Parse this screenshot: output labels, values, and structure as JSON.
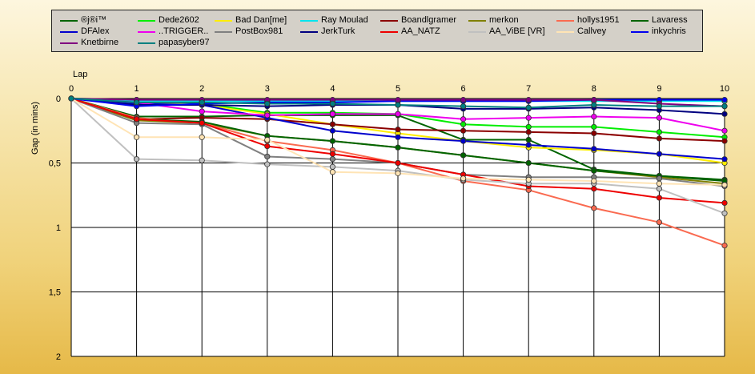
{
  "chart_data": {
    "type": "line",
    "xlabel": "Lap",
    "ylabel": "Gap (in mins)",
    "x": [
      0,
      1,
      2,
      3,
      4,
      5,
      6,
      7,
      8,
      9,
      10
    ],
    "x_ticks": [
      "0",
      "1",
      "2",
      "3",
      "4",
      "5",
      "6",
      "7",
      "8",
      "9",
      "10"
    ],
    "xlim": [
      0,
      10
    ],
    "ylim": [
      0,
      2
    ],
    "y_inverted": true,
    "y_ticks": [
      0,
      0.5,
      1,
      1.5,
      2
    ],
    "y_tick_labels": [
      "0",
      "0,5",
      "1",
      "1,5",
      "2"
    ],
    "grid": true,
    "legend_position": "top",
    "plot_background": "#ffffff",
    "series": [
      {
        "name": "®j®i™",
        "color": "#006400",
        "values": [
          0,
          0.14,
          0.14,
          0.13,
          0.13,
          0.13,
          0.32,
          0.32,
          0.55,
          0.6,
          0.63
        ]
      },
      {
        "name": "Dede2602",
        "color": "#00ee00",
        "values": [
          0,
          0.01,
          0.04,
          0.11,
          0.11,
          0.12,
          0.2,
          0.22,
          0.22,
          0.26,
          0.3
        ]
      },
      {
        "name": "Bad Dan[me]",
        "color": "#ffee00",
        "values": [
          0,
          0.03,
          0.05,
          0.12,
          0.2,
          0.27,
          0.33,
          0.38,
          0.4,
          0.43,
          0.5
        ]
      },
      {
        "name": "Ray Moulad",
        "color": "#00e5ee",
        "values": [
          0,
          0.02,
          0.02,
          0.02,
          0.02,
          0.02,
          0.02,
          0.02,
          0.02,
          0.02,
          0.02
        ]
      },
      {
        "name": "Boandlgramer",
        "color": "#8b0000",
        "values": [
          0,
          0.16,
          0.15,
          0.16,
          0.2,
          0.24,
          0.25,
          0.26,
          0.27,
          0.31,
          0.33
        ]
      },
      {
        "name": "merkon",
        "color": "#808000",
        "values": [
          0,
          0.17,
          0.19,
          0.29,
          0.33,
          0.38,
          0.44,
          0.5,
          0.56,
          0.61,
          0.66
        ]
      },
      {
        "name": "hollys1951",
        "color": "#fa6a50",
        "values": [
          0,
          0.15,
          0.19,
          0.33,
          0.4,
          0.5,
          0.64,
          0.71,
          0.85,
          0.96,
          1.14
        ]
      },
      {
        "name": "Lavaress",
        "color": "#006400",
        "values": [
          0,
          0.16,
          0.18,
          0.29,
          0.33,
          0.38,
          0.44,
          0.5,
          0.56,
          0.6,
          0.64
        ]
      },
      {
        "name": "DFAlex",
        "color": "#0000cd",
        "values": [
          0,
          0.04,
          0.05,
          0.15,
          0.25,
          0.3,
          0.33,
          0.36,
          0.39,
          0.43,
          0.47
        ]
      },
      {
        "name": "..TRIGGER..",
        "color": "#ee00ee",
        "values": [
          0,
          0.03,
          0.1,
          0.13,
          0.12,
          0.12,
          0.16,
          0.15,
          0.14,
          0.15,
          0.25
        ]
      },
      {
        "name": "PostBox981",
        "color": "#808080",
        "values": [
          0,
          0.19,
          0.2,
          0.45,
          0.47,
          0.5,
          0.59,
          0.61,
          0.61,
          0.62,
          0.68
        ]
      },
      {
        "name": "JerkTurk",
        "color": "#000080",
        "values": [
          0,
          0.05,
          0.05,
          0.06,
          0.05,
          0.05,
          0.08,
          0.08,
          0.07,
          0.09,
          0.12
        ]
      },
      {
        "name": "AA_NATZ",
        "color": "#ee0000",
        "values": [
          0,
          0.16,
          0.19,
          0.37,
          0.43,
          0.5,
          0.59,
          0.68,
          0.7,
          0.77,
          0.81
        ]
      },
      {
        "name": "AA_ViBE [VR]",
        "color": "#c0c0c0",
        "values": [
          0,
          0.47,
          0.48,
          0.51,
          0.53,
          0.56,
          0.63,
          0.66,
          0.66,
          0.7,
          0.89
        ]
      },
      {
        "name": "Callvey",
        "color": "#ffe4b5",
        "values": [
          0,
          0.3,
          0.3,
          0.32,
          0.57,
          0.58,
          0.62,
          0.63,
          0.64,
          0.66,
          0.67
        ]
      },
      {
        "name": "inkychris",
        "color": "#0000ee",
        "values": [
          0,
          0.06,
          0.04,
          0.03,
          0.03,
          0.02,
          0.02,
          0.02,
          0.01,
          0.01,
          0.01
        ]
      },
      {
        "name": "Knetbirne",
        "color": "#800080",
        "values": [
          0,
          0.01,
          0.01,
          0.01,
          0.01,
          0.01,
          0.01,
          0.01,
          0.01,
          0.04,
          0.06
        ]
      },
      {
        "name": "papasyber97",
        "color": "#008080",
        "values": [
          0,
          0.03,
          0.03,
          0.04,
          0.04,
          0.05,
          0.06,
          0.07,
          0.05,
          0.06,
          0.06
        ]
      }
    ]
  }
}
